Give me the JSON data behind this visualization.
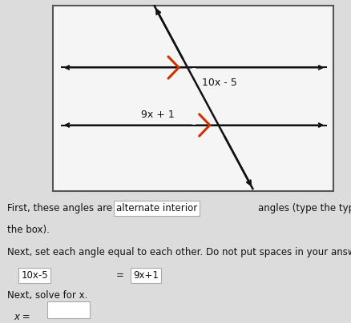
{
  "bg_color": "#dcdcdc",
  "box_bg": "#f5f5f5",
  "box_border": "#555555",
  "tick_color": "#cc3300",
  "label1": "10x - 5",
  "label2": "9x + 1",
  "line_color": "#111111",
  "line_lw": 1.5,
  "transversal_lw": 1.8,
  "font_size_diagram": 9,
  "font_size_body": 8.5,
  "text_line1a": "First, these angles are",
  "text_box1": "alternate interior",
  "text_line1b": "angles (type the type of angle in",
  "text_line2": "the box).",
  "text_line3": "Next, set each angle equal to each other. Do not put spaces in your answer.",
  "input_lhs": "10x-5",
  "input_rhs": "9x+1",
  "text_line4": "Next, solve for x.",
  "eq_sign": "=",
  "x_label": "x ="
}
